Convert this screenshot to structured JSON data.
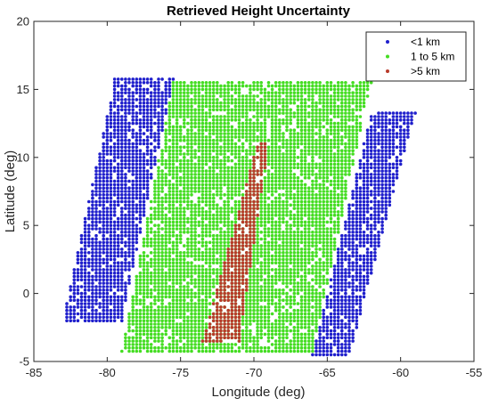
{
  "chart_data": {
    "type": "scatter",
    "title": "Retrieved Height Uncertainty",
    "xlabel": "Longitude (deg)",
    "ylabel": "Latitude (deg)",
    "xlim": [
      -85,
      -55
    ],
    "ylim": [
      -5,
      20
    ],
    "xticks": [
      -85,
      -80,
      -75,
      -70,
      -65,
      -60,
      -55
    ],
    "yticks": [
      -5,
      0,
      5,
      10,
      15,
      20
    ],
    "grid": false,
    "legend_position": "top-right",
    "x_spacing": 0.25,
    "y_spacing": 0.25,
    "series": [
      {
        "name": "<1 km",
        "color": "#1f1fcc",
        "regions": [
          {
            "lat_min": -2.0,
            "lat_max": 15.75,
            "lon_min_at_bottom": -83.0,
            "lon_min_at_top": -79.5,
            "lon_max_at_bottom": -79.0,
            "lon_max_at_top": -75.5
          },
          {
            "lat_min": -4.5,
            "lat_max": 13.25,
            "lon_min_at_bottom": -66.0,
            "lon_min_at_top": -62.0,
            "lon_max_at_bottom": -63.5,
            "lon_max_at_top": -59.0
          }
        ]
      },
      {
        "name": "1 to 5 km",
        "color": "#44dd22",
        "regions": [
          {
            "lat_min": -4.25,
            "lat_max": 15.5,
            "lon_min_at_bottom": -79.0,
            "lon_min_at_top": -75.5,
            "lon_max_at_bottom": -66.0,
            "lon_max_at_top": -62.0
          }
        ]
      },
      {
        "name": ">5 km",
        "color": "#b83a2a",
        "regions": [
          {
            "lat_min": -3.5,
            "lat_max": 11.0,
            "lon_min_at_bottom": -73.5,
            "lon_min_at_top": -69.75,
            "lon_max_at_bottom": -71.0,
            "lon_max_at_top": -69.0
          }
        ]
      }
    ]
  }
}
